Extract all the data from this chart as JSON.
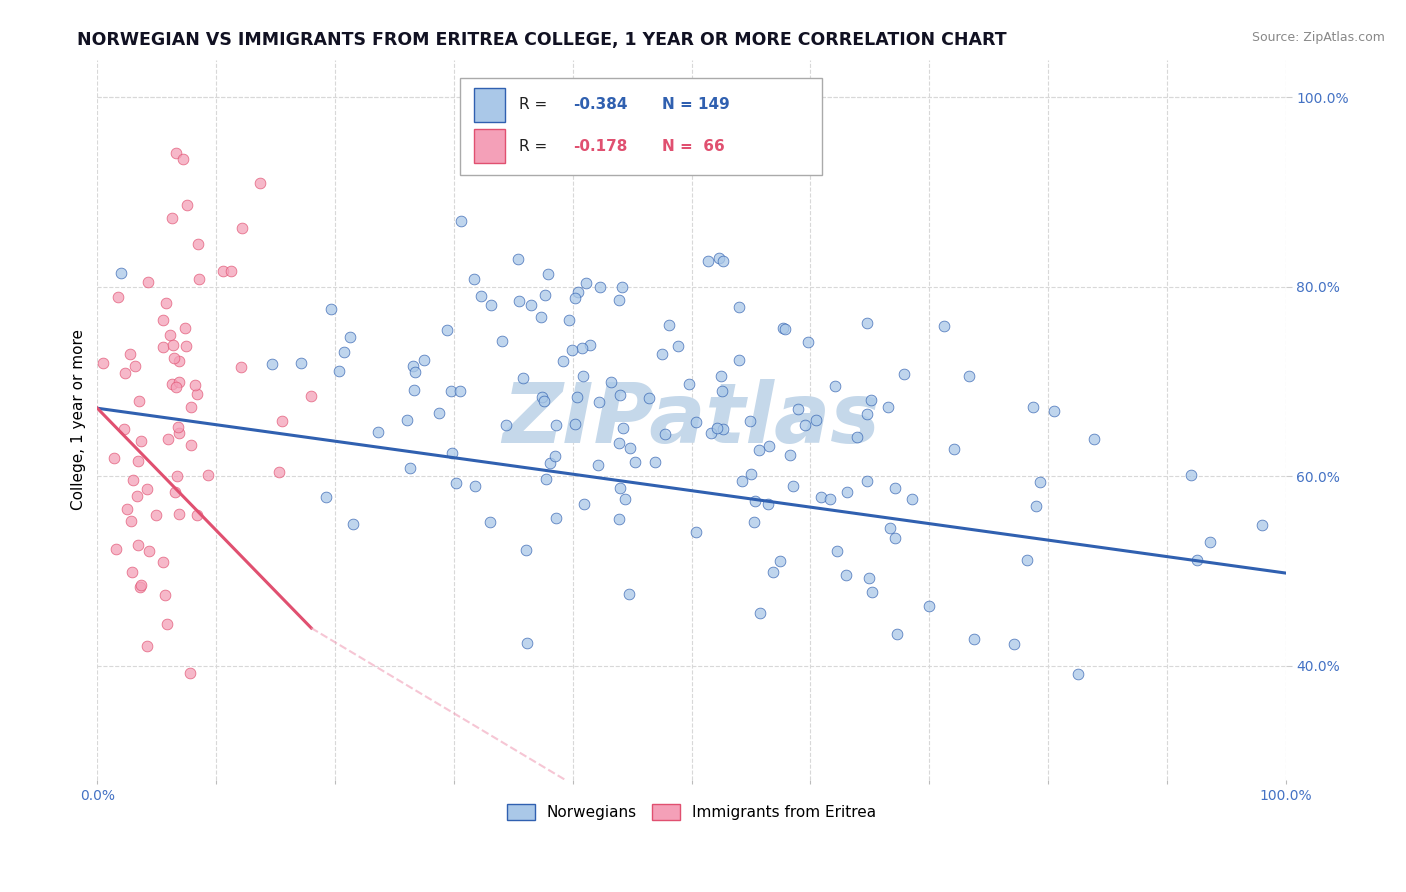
{
  "title": "NORWEGIAN VS IMMIGRANTS FROM ERITREA COLLEGE, 1 YEAR OR MORE CORRELATION CHART",
  "source_text": "Source: ZipAtlas.com",
  "ylabel": "College, 1 year or more",
  "xlim": [
    0.0,
    1.0
  ],
  "ylim": [
    0.28,
    1.04
  ],
  "xticks": [
    0.0,
    0.1,
    0.2,
    0.3,
    0.4,
    0.5,
    0.6,
    0.7,
    0.8,
    0.9,
    1.0
  ],
  "xticklabels": [
    "0.0%",
    "",
    "",
    "",
    "",
    "",
    "",
    "",
    "",
    "",
    "100.0%"
  ],
  "yticks_right": [
    0.4,
    0.6,
    0.8,
    1.0
  ],
  "yticklabels_right": [
    "40.0%",
    "60.0%",
    "80.0%",
    "100.0%"
  ],
  "norwegian_R": -0.384,
  "norwegian_N": 149,
  "eritrea_R": -0.178,
  "eritrea_N": 66,
  "norwegian_color": "#aac8e8",
  "eritrea_color": "#f4a0b8",
  "norwegian_line_color": "#3060b0",
  "eritrea_line_solid_color": "#e05070",
  "eritrea_line_dash_color": "#f0a0b8",
  "watermark": "ZIPatlas",
  "watermark_color": "#c5d8ea",
  "legend_label_norwegian": "Norwegians",
  "legend_label_eritrea": "Immigrants from Eritrea",
  "title_color": "#111122",
  "axis_color": "#4472c4",
  "background_color": "#ffffff",
  "grid_color": "#d8d8d8",
  "nor_line_start_y": 0.672,
  "nor_line_end_y": 0.498,
  "eri_line_start_y": 0.672,
  "eri_line_solid_end_x": 0.18,
  "eri_line_solid_end_y": 0.44,
  "eri_line_dash_end_x": 0.58,
  "eri_line_dash_end_y": 0.14
}
